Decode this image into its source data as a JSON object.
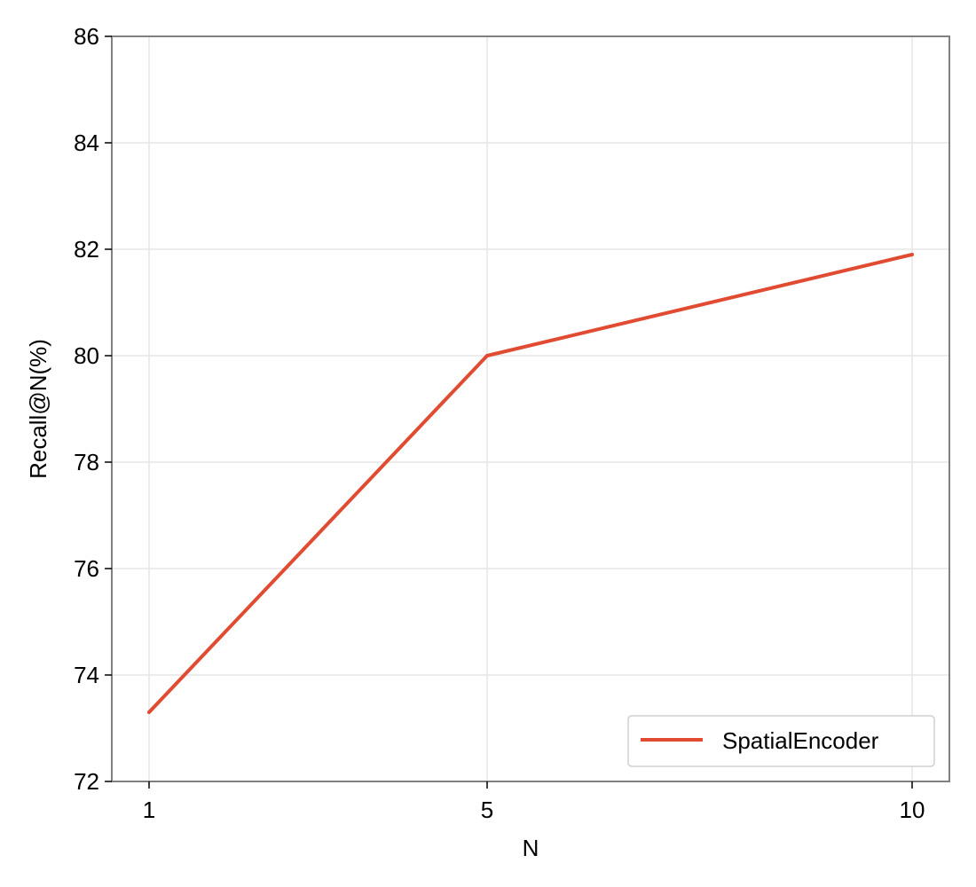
{
  "chart_data": {
    "type": "line",
    "title": "",
    "xlabel": "N",
    "ylabel": "Recall@N(%)",
    "x": [
      1,
      5,
      10
    ],
    "x_tick_labels": [
      "1",
      "5",
      "10"
    ],
    "y_ticks": [
      72,
      74,
      76,
      78,
      80,
      82,
      84,
      86
    ],
    "y_tick_labels": [
      "72",
      "74",
      "76",
      "78",
      "80",
      "82",
      "84",
      "86"
    ],
    "ylim": [
      72,
      86
    ],
    "grid": true,
    "legend_position": "lower-right",
    "series": [
      {
        "name": "SpatialEncoder",
        "color": "#e04b32",
        "values": [
          73.3,
          80.0,
          81.9
        ]
      }
    ]
  }
}
